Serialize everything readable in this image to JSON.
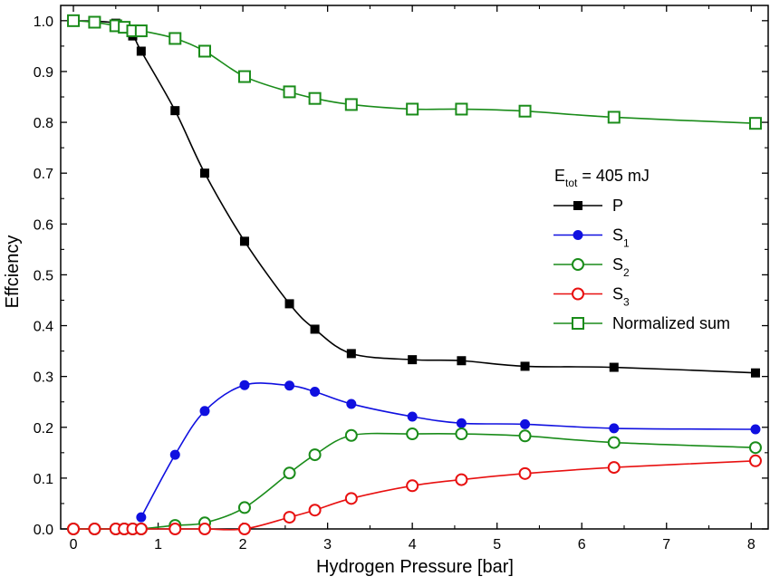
{
  "chart_data": {
    "type": "line",
    "xlabel": "Hydrogen Pressure [bar]",
    "ylabel": "Effciency",
    "xlim": [
      -0.15,
      8.2
    ],
    "ylim": [
      0.0,
      1.03
    ],
    "x_ticks": [
      0,
      1,
      2,
      3,
      4,
      5,
      6,
      7,
      8
    ],
    "y_ticks": [
      0.0,
      0.1,
      0.2,
      0.3,
      0.4,
      0.5,
      0.6,
      0.7,
      0.8,
      0.9,
      1.0
    ],
    "x_tick_labels": [
      "0",
      "1",
      "2",
      "3",
      "4",
      "5",
      "6",
      "7",
      "8"
    ],
    "y_tick_labels": [
      "0.0",
      "0.1",
      "0.2",
      "0.3",
      "0.4",
      "0.5",
      "0.6",
      "0.7",
      "0.8",
      "0.9",
      "1.0"
    ],
    "grid": false,
    "legend_position": "right",
    "legend_title": {
      "main": "E",
      "sub": "tot",
      "rest": " = 405 mJ"
    },
    "series": [
      {
        "name": "P",
        "name_main": "P",
        "name_sub": "",
        "color": "#000000",
        "marker": "square-filled",
        "x": [
          0,
          0.5,
          0.7,
          0.8,
          1.2,
          1.55,
          2.02,
          2.55,
          2.85,
          3.28,
          4.0,
          4.58,
          5.33,
          6.38,
          8.05
        ],
        "y": [
          1.0,
          0.995,
          0.97,
          0.94,
          0.823,
          0.7,
          0.566,
          0.443,
          0.393,
          0.345,
          0.333,
          0.331,
          0.32,
          0.318,
          0.307
        ]
      },
      {
        "name": "S1",
        "name_main": "S",
        "name_sub": "1",
        "color": "#1010e0",
        "marker": "circle-filled",
        "x": [
          0.8,
          1.2,
          1.55,
          2.02,
          2.55,
          2.85,
          3.28,
          4.0,
          4.58,
          5.33,
          6.38,
          8.05
        ],
        "y": [
          0.023,
          0.146,
          0.232,
          0.283,
          0.282,
          0.27,
          0.246,
          0.221,
          0.208,
          0.206,
          0.198,
          0.196
        ]
      },
      {
        "name": "S2",
        "name_main": "S",
        "name_sub": "2",
        "color": "#1a8c1a",
        "marker": "circle-open",
        "x": [
          0,
          0.25,
          0.5,
          0.6,
          0.7,
          0.8,
          1.2,
          1.55,
          2.02,
          2.55,
          2.85,
          3.28,
          4.0,
          4.58,
          5.33,
          6.38,
          8.05
        ],
        "y": [
          0,
          0,
          0,
          0,
          0,
          0,
          0.007,
          0.012,
          0.042,
          0.11,
          0.146,
          0.184,
          0.187,
          0.187,
          0.183,
          0.17,
          0.16
        ]
      },
      {
        "name": "S3",
        "name_main": "S",
        "name_sub": "3",
        "color": "#e81010",
        "marker": "circle-open",
        "x": [
          0,
          0.25,
          0.5,
          0.6,
          0.7,
          0.8,
          1.2,
          1.55,
          2.02,
          2.55,
          2.85,
          3.28,
          4.0,
          4.58,
          5.33,
          6.38,
          8.05
        ],
        "y": [
          0,
          0,
          0,
          0,
          0,
          0,
          0,
          0,
          0,
          0.023,
          0.037,
          0.06,
          0.085,
          0.097,
          0.109,
          0.121,
          0.134
        ]
      },
      {
        "name": "Normalized sum",
        "name_main": "Normalized sum",
        "name_sub": "",
        "color": "#1a8c1a",
        "marker": "square-open",
        "x": [
          0,
          0.25,
          0.5,
          0.6,
          0.7,
          0.8,
          1.2,
          1.55,
          2.02,
          2.55,
          2.85,
          3.28,
          4.0,
          4.58,
          5.33,
          6.38,
          8.05
        ],
        "y": [
          1.0,
          0.997,
          0.99,
          0.987,
          0.98,
          0.98,
          0.965,
          0.94,
          0.89,
          0.86,
          0.847,
          0.835,
          0.826,
          0.826,
          0.822,
          0.81,
          0.798
        ]
      }
    ]
  }
}
